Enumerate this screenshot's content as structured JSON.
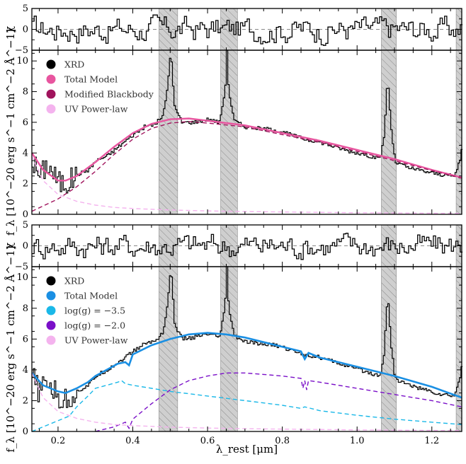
{
  "chart_data": [
    {
      "type": "line",
      "panel": "top-residual",
      "ylabel": "χ",
      "ylim": [
        -5,
        5
      ],
      "yticks": [
        "5",
        "0",
        "−5"
      ],
      "xlim": [
        0.13,
        1.28
      ]
    },
    {
      "type": "line",
      "panel": "top-spectrum",
      "ylabel": "f_λ [10^−20 erg s^−1 cm^−2 Å^−1]",
      "ylim": [
        0,
        10.7
      ],
      "yticks": [
        "0",
        "2",
        "4",
        "6",
        "8",
        "10"
      ],
      "xlim": [
        0.13,
        1.28
      ],
      "masked_regions": [
        [
          0.47,
          0.52
        ],
        [
          0.635,
          0.68
        ],
        [
          1.065,
          1.105
        ],
        [
          1.265,
          1.29
        ]
      ],
      "legend": [
        {
          "label": "XRD",
          "color": "#000000"
        },
        {
          "label": "Total Model",
          "color": "#e8559f"
        },
        {
          "label": "Modified Blackbody",
          "color": "#a0135c"
        },
        {
          "label": "UV Power-law",
          "color": "#f4b3ee"
        }
      ],
      "series": [
        {
          "name": "Total Model",
          "x": [
            0.13,
            0.16,
            0.2,
            0.22,
            0.25,
            0.3,
            0.35,
            0.4,
            0.45,
            0.5,
            0.55,
            0.6,
            0.65,
            0.7,
            0.8,
            0.9,
            1.0,
            1.1,
            1.2,
            1.28
          ],
          "y": [
            4.0,
            2.9,
            2.2,
            2.2,
            2.5,
            3.4,
            4.4,
            5.3,
            5.9,
            6.2,
            6.25,
            6.1,
            5.95,
            5.8,
            5.3,
            4.8,
            4.2,
            3.6,
            2.9,
            2.4
          ]
        },
        {
          "name": "Modified Blackbody",
          "x": [
            0.13,
            0.2,
            0.25,
            0.3,
            0.35,
            0.4,
            0.45,
            0.5,
            0.55,
            0.6,
            0.7,
            0.8,
            0.9,
            1.0,
            1.1,
            1.2,
            1.28
          ],
          "y": [
            0.2,
            1.0,
            1.8,
            2.8,
            3.9,
            4.9,
            5.6,
            5.95,
            6.05,
            5.95,
            5.7,
            5.2,
            4.7,
            4.1,
            3.5,
            2.85,
            2.35
          ]
        },
        {
          "name": "UV Power-law",
          "x": [
            0.13,
            0.16,
            0.2,
            0.25,
            0.3,
            0.35,
            0.4,
            0.5,
            0.6,
            0.7,
            0.8,
            1.0,
            1.2,
            1.28
          ],
          "y": [
            3.8,
            2.2,
            1.3,
            0.85,
            0.6,
            0.45,
            0.38,
            0.28,
            0.22,
            0.18,
            0.15,
            0.1,
            0.07,
            0.06
          ]
        },
        {
          "name": "XRD",
          "x": [
            0.13,
            0.15,
            0.17,
            0.2,
            0.22,
            0.25,
            0.28,
            0.3,
            0.33,
            0.36,
            0.4,
            0.43,
            0.46,
            0.48,
            0.49,
            0.5,
            0.51,
            0.53,
            0.56,
            0.6,
            0.63,
            0.645,
            0.65,
            0.655,
            0.67,
            0.7,
            0.74,
            0.78,
            0.82,
            0.86,
            0.9,
            0.94,
            0.98,
            1.02,
            1.06,
            1.07,
            1.08,
            1.09,
            1.1,
            1.14,
            1.18,
            1.22,
            1.26,
            1.275,
            1.28
          ],
          "y": [
            3.5,
            2.5,
            3.3,
            2.1,
            2.0,
            2.6,
            2.9,
            3.5,
            3.8,
            4.4,
            5.2,
            5.7,
            5.9,
            6.5,
            8.0,
            10.7,
            7.0,
            6.0,
            6.0,
            6.2,
            6.0,
            8.0,
            10.7,
            8.0,
            6.1,
            5.7,
            5.6,
            5.5,
            5.2,
            4.9,
            4.7,
            4.4,
            4.1,
            3.9,
            3.6,
            5.0,
            8.9,
            5.5,
            3.4,
            3.0,
            2.8,
            2.6,
            2.5,
            3.7,
            4.5
          ]
        }
      ]
    },
    {
      "type": "line",
      "panel": "bottom-residual",
      "ylabel": "χ",
      "ylim": [
        -5,
        5
      ],
      "yticks": [
        "5",
        "0",
        "−5"
      ],
      "xlim": [
        0.13,
        1.28
      ]
    },
    {
      "type": "line",
      "panel": "bottom-spectrum",
      "ylabel": "f_λ [10^−20 erg s^−1 cm^−2 Å^−1]",
      "ylim": [
        0,
        10.7
      ],
      "yticks": [
        "0",
        "2",
        "4",
        "6",
        "8",
        "10"
      ],
      "xlim": [
        0.13,
        1.28
      ],
      "xticks": [
        "0.2",
        "0.4",
        "0.6",
        "0.8",
        "1.0",
        "1.2"
      ],
      "xlabel": "λ_rest [μm]",
      "masked_regions": [
        [
          0.47,
          0.52
        ],
        [
          0.635,
          0.68
        ],
        [
          1.065,
          1.105
        ],
        [
          1.265,
          1.29
        ]
      ],
      "legend": [
        {
          "label": "XRD",
          "color": "#000000"
        },
        {
          "label": "Total Model",
          "color": "#1a8fe3"
        },
        {
          "label": "log(g) = −3.5",
          "color": "#1ab8e8"
        },
        {
          "label": "log(g) = −2.0",
          "color": "#7a0fc8"
        },
        {
          "label": "UV Power-law",
          "color": "#f4b3ee"
        }
      ],
      "series": [
        {
          "name": "Total Model",
          "x": [
            0.13,
            0.16,
            0.2,
            0.22,
            0.25,
            0.28,
            0.3,
            0.33,
            0.36,
            0.38,
            0.39,
            0.4,
            0.45,
            0.5,
            0.55,
            0.6,
            0.65,
            0.7,
            0.8,
            0.85,
            0.86,
            0.87,
            0.9,
            1.0,
            1.1,
            1.2,
            1.28
          ],
          "y": [
            3.8,
            3.0,
            2.6,
            2.5,
            2.8,
            3.2,
            3.6,
            4.0,
            4.4,
            4.5,
            4.3,
            5.0,
            5.6,
            6.0,
            6.3,
            6.4,
            6.3,
            6.1,
            5.5,
            5.2,
            4.7,
            5.1,
            4.8,
            4.2,
            3.6,
            2.9,
            2.2
          ]
        },
        {
          "name": "log(g) = −3.5",
          "x": [
            0.13,
            0.16,
            0.2,
            0.23,
            0.25,
            0.28,
            0.3,
            0.33,
            0.36,
            0.37,
            0.38,
            0.4,
            0.45,
            0.5,
            0.6,
            0.7,
            0.8,
            0.85,
            0.86,
            0.9,
            1.0,
            1.1,
            1.2,
            1.28
          ],
          "y": [
            0.0,
            0.3,
            0.7,
            1.0,
            1.6,
            2.3,
            2.8,
            3.0,
            3.2,
            3.3,
            3.1,
            3.0,
            2.8,
            2.6,
            2.3,
            2.0,
            1.7,
            1.5,
            1.6,
            1.35,
            1.05,
            0.8,
            0.6,
            0.45
          ]
        },
        {
          "name": "log(g) = −2.0",
          "x": [
            0.3,
            0.35,
            0.38,
            0.39,
            0.4,
            0.45,
            0.5,
            0.55,
            0.6,
            0.65,
            0.7,
            0.75,
            0.8,
            0.85,
            0.855,
            0.86,
            0.865,
            0.87,
            0.9,
            1.0,
            1.1,
            1.2,
            1.28
          ],
          "y": [
            0.0,
            0.3,
            0.6,
            0.2,
            0.8,
            1.8,
            2.7,
            3.3,
            3.6,
            3.8,
            3.8,
            3.7,
            3.6,
            3.45,
            2.8,
            3.3,
            2.7,
            3.3,
            3.2,
            2.8,
            2.4,
            2.0,
            1.6
          ]
        },
        {
          "name": "UV Power-law",
          "x": [
            0.13,
            0.16,
            0.2,
            0.25,
            0.3,
            0.35,
            0.4,
            0.5,
            0.6,
            0.7,
            0.8,
            1.0,
            1.2,
            1.28
          ],
          "y": [
            3.8,
            2.2,
            1.3,
            0.85,
            0.6,
            0.45,
            0.38,
            0.28,
            0.22,
            0.18,
            0.15,
            0.1,
            0.07,
            0.06
          ]
        },
        {
          "name": "XRD",
          "x": [
            0.13,
            0.15,
            0.17,
            0.2,
            0.22,
            0.25,
            0.28,
            0.3,
            0.33,
            0.36,
            0.4,
            0.43,
            0.46,
            0.48,
            0.49,
            0.5,
            0.51,
            0.53,
            0.56,
            0.6,
            0.63,
            0.645,
            0.65,
            0.655,
            0.67,
            0.7,
            0.74,
            0.78,
            0.82,
            0.86,
            0.9,
            0.94,
            0.98,
            1.02,
            1.06,
            1.07,
            1.08,
            1.09,
            1.1,
            1.14,
            1.18,
            1.22,
            1.26,
            1.275,
            1.28
          ],
          "y": [
            3.5,
            2.5,
            3.3,
            2.1,
            2.0,
            2.6,
            3.0,
            3.6,
            4.0,
            4.5,
            5.2,
            5.7,
            5.9,
            6.5,
            8.0,
            10.7,
            7.0,
            6.0,
            6.1,
            6.3,
            6.1,
            8.0,
            10.7,
            8.0,
            6.2,
            5.8,
            5.7,
            5.6,
            5.3,
            5.0,
            4.8,
            4.5,
            4.2,
            3.9,
            3.6,
            5.0,
            8.9,
            5.5,
            3.4,
            3.0,
            2.7,
            2.4,
            2.3,
            3.7,
            4.5
          ]
        }
      ]
    }
  ]
}
